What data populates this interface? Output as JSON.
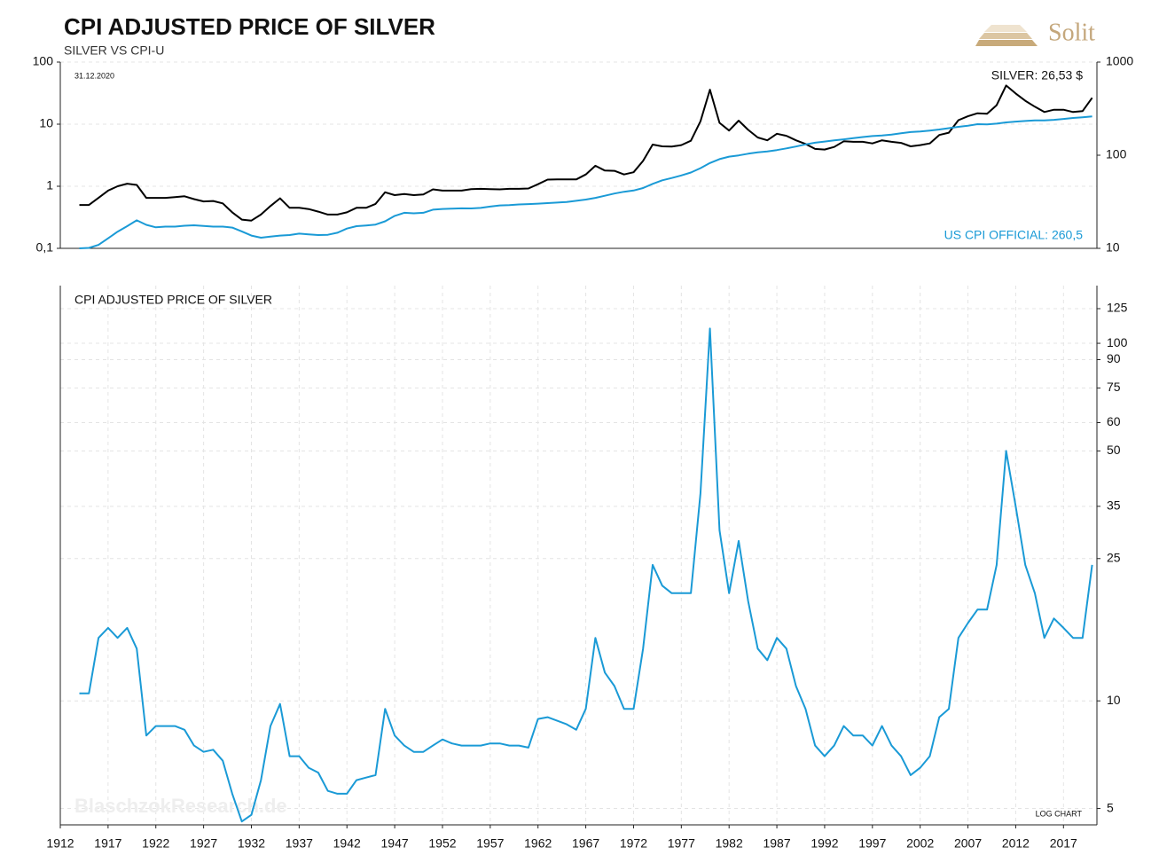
{
  "brand": "Solit",
  "chart_data": [
    {
      "type": "line",
      "title": "CPI ADJUSTED PRICE OF SILVER",
      "subtitle": "SILVER VS CPI-U",
      "date": "31.12.2020",
      "annotations": [
        "SILVER: 26,53 $",
        "US CPI OFFICIAL: 260,5"
      ],
      "x": [
        1914,
        1915,
        1916,
        1917,
        1918,
        1919,
        1920,
        1921,
        1922,
        1923,
        1924,
        1925,
        1926,
        1927,
        1928,
        1929,
        1930,
        1931,
        1932,
        1933,
        1934,
        1935,
        1936,
        1937,
        1938,
        1939,
        1940,
        1941,
        1942,
        1943,
        1944,
        1945,
        1946,
        1947,
        1948,
        1949,
        1950,
        1951,
        1952,
        1953,
        1954,
        1955,
        1956,
        1957,
        1958,
        1959,
        1960,
        1961,
        1962,
        1963,
        1964,
        1965,
        1966,
        1967,
        1968,
        1969,
        1970,
        1971,
        1972,
        1973,
        1974,
        1975,
        1976,
        1977,
        1978,
        1979,
        1980,
        1981,
        1982,
        1983,
        1984,
        1985,
        1986,
        1987,
        1988,
        1989,
        1990,
        1991,
        1992,
        1993,
        1994,
        1995,
        1996,
        1997,
        1998,
        1999,
        2000,
        2001,
        2002,
        2003,
        2004,
        2005,
        2006,
        2007,
        2008,
        2009,
        2010,
        2011,
        2012,
        2013,
        2014,
        2015,
        2016,
        2017,
        2018,
        2019,
        2020
      ],
      "xlim": [
        1912,
        2020.5
      ],
      "ylim": [
        0.1,
        100
      ],
      "yticks": [
        {
          "value": 0.1,
          "label": "0,1"
        },
        1,
        10,
        100
      ],
      "ylog": true,
      "y2lim": [
        10,
        1000
      ],
      "y2ticks": [
        10,
        100,
        1000
      ],
      "y2log": true,
      "grid": true,
      "series": [
        {
          "name": "Silver",
          "color": "#000000",
          "axis": "y",
          "values": [
            0.5,
            0.5,
            0.65,
            0.85,
            1.0,
            1.1,
            1.05,
            0.65,
            0.65,
            0.65,
            0.67,
            0.69,
            0.62,
            0.57,
            0.58,
            0.53,
            0.38,
            0.29,
            0.28,
            0.35,
            0.48,
            0.64,
            0.45,
            0.45,
            0.43,
            0.39,
            0.35,
            0.35,
            0.38,
            0.45,
            0.45,
            0.52,
            0.8,
            0.72,
            0.75,
            0.72,
            0.74,
            0.89,
            0.85,
            0.85,
            0.85,
            0.9,
            0.91,
            0.9,
            0.89,
            0.91,
            0.91,
            0.92,
            1.08,
            1.28,
            1.29,
            1.29,
            1.29,
            1.55,
            2.14,
            1.79,
            1.77,
            1.55,
            1.68,
            2.56,
            4.7,
            4.4,
            4.35,
            4.6,
            5.4,
            11.1,
            36,
            10.5,
            7.9,
            11.4,
            8.1,
            6.1,
            5.5,
            7.0,
            6.5,
            5.5,
            4.8,
            4.0,
            3.9,
            4.3,
            5.3,
            5.2,
            5.2,
            4.9,
            5.5,
            5.2,
            5.0,
            4.4,
            4.6,
            4.9,
            6.7,
            7.3,
            11.6,
            13.4,
            15.0,
            14.7,
            20.2,
            42,
            31.2,
            23.8,
            19.1,
            15.7,
            17.1,
            17.1,
            15.7,
            16.2,
            26.53
          ]
        },
        {
          "name": "US CPI",
          "color": "#1a9ad6",
          "axis": "y2",
          "values": [
            10.0,
            10.1,
            10.9,
            12.8,
            15.1,
            17.3,
            20.0,
            17.9,
            16.8,
            17.1,
            17.1,
            17.5,
            17.7,
            17.4,
            17.1,
            17.1,
            16.7,
            15.2,
            13.7,
            13.0,
            13.4,
            13.7,
            13.9,
            14.4,
            14.1,
            13.9,
            14.0,
            14.7,
            16.3,
            17.3,
            17.6,
            18.0,
            19.5,
            22.3,
            24.1,
            23.8,
            24.1,
            26.0,
            26.5,
            26.7,
            26.9,
            26.8,
            27.2,
            28.1,
            28.9,
            29.1,
            29.6,
            29.9,
            30.2,
            30.6,
            31.0,
            31.5,
            32.4,
            33.4,
            34.8,
            36.7,
            38.8,
            40.5,
            41.8,
            44.4,
            49.3,
            53.8,
            56.9,
            60.6,
            65.2,
            72.6,
            82.4,
            90.9,
            96.5,
            99.6,
            103.9,
            107.6,
            109.6,
            113.6,
            118.3,
            124.0,
            130.7,
            136.2,
            140.3,
            144.5,
            148.2,
            152.4,
            156.9,
            160.5,
            163.0,
            166.6,
            172.2,
            177.1,
            179.9,
            184.0,
            188.9,
            195.3,
            201.6,
            207.3,
            215.3,
            214.5,
            218.1,
            224.9,
            229.6,
            233.0,
            236.7,
            237.0,
            240.0,
            245.1,
            251.1,
            255.7,
            260.5
          ]
        }
      ]
    },
    {
      "type": "line",
      "title": "CPI ADJUSTED PRICE OF SILVER",
      "note": "LOG CHART",
      "watermark": "BlaschzokResearch.de",
      "x": [
        1914,
        1915,
        1916,
        1917,
        1918,
        1919,
        1920,
        1921,
        1922,
        1923,
        1924,
        1925,
        1926,
        1927,
        1928,
        1929,
        1930,
        1931,
        1932,
        1933,
        1934,
        1935,
        1936,
        1937,
        1938,
        1939,
        1940,
        1941,
        1942,
        1943,
        1944,
        1945,
        1946,
        1947,
        1948,
        1949,
        1950,
        1951,
        1952,
        1953,
        1954,
        1955,
        1956,
        1957,
        1958,
        1959,
        1960,
        1961,
        1962,
        1963,
        1964,
        1965,
        1966,
        1967,
        1968,
        1969,
        1970,
        1971,
        1972,
        1973,
        1974,
        1975,
        1976,
        1977,
        1978,
        1979,
        1980,
        1981,
        1982,
        1983,
        1984,
        1985,
        1986,
        1987,
        1988,
        1989,
        1990,
        1991,
        1992,
        1993,
        1994,
        1995,
        1996,
        1997,
        1998,
        1999,
        2000,
        2001,
        2002,
        2003,
        2004,
        2005,
        2006,
        2007,
        2008,
        2009,
        2010,
        2011,
        2012,
        2013,
        2014,
        2015,
        2016,
        2017,
        2018,
        2019,
        2020
      ],
      "xlim": [
        1912,
        2020.5
      ],
      "xticks": [
        1912,
        1917,
        1922,
        1927,
        1932,
        1937,
        1942,
        1947,
        1952,
        1957,
        1962,
        1967,
        1972,
        1977,
        1982,
        1987,
        1992,
        1997,
        2002,
        2007,
        2012,
        2017
      ],
      "ylim": [
        4.5,
        145
      ],
      "yticks": [
        5,
        10,
        25,
        35,
        50,
        60,
        75,
        90,
        100,
        125
      ],
      "ylog": true,
      "grid": true,
      "series": [
        {
          "name": "CPI adjusted silver",
          "color": "#1a9ad6",
          "values": [
            10.5,
            10.5,
            15,
            16,
            15,
            16,
            14,
            8,
            8.5,
            8.5,
            8.5,
            8.3,
            7.5,
            7.2,
            7.3,
            6.8,
            5.5,
            4.6,
            4.8,
            6,
            8.5,
            9.8,
            7,
            7,
            6.5,
            6.3,
            5.6,
            5.5,
            5.5,
            6.0,
            6.1,
            6.2,
            9.5,
            8,
            7.5,
            7.2,
            7.2,
            7.5,
            7.8,
            7.6,
            7.5,
            7.5,
            7.5,
            7.6,
            7.6,
            7.5,
            7.5,
            7.4,
            8.9,
            9.0,
            8.8,
            8.6,
            8.3,
            9.5,
            15,
            12,
            11,
            9.5,
            9.5,
            14,
            24,
            21,
            20,
            20,
            20,
            38,
            110,
            30,
            20,
            28,
            19,
            14,
            13,
            15,
            14,
            11,
            9.5,
            7.5,
            7.0,
            7.5,
            8.5,
            8.0,
            8.0,
            7.5,
            8.5,
            7.5,
            7.0,
            6.2,
            6.5,
            7.0,
            9.0,
            9.5,
            15,
            16.5,
            18,
            18,
            24,
            50,
            35,
            24,
            20,
            15,
            17,
            16,
            15,
            15,
            24
          ]
        }
      ]
    }
  ]
}
